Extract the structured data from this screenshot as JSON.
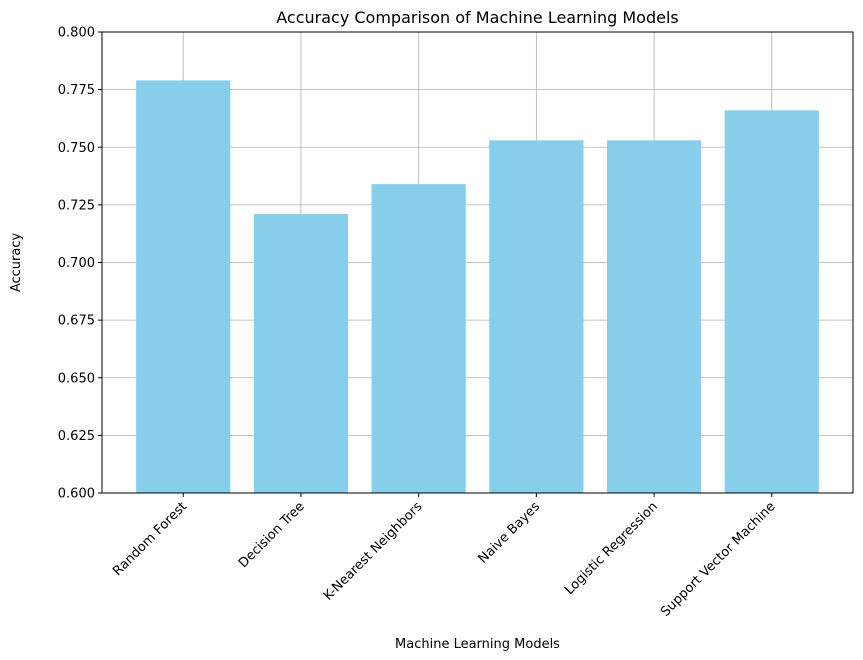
{
  "chart_data": {
    "type": "bar",
    "title": "Accuracy Comparison of Machine Learning Models",
    "xlabel": "Machine Learning Models",
    "ylabel": "Accuracy",
    "categories": [
      "Random Forest",
      "Decision Tree",
      "K-Nearest Neighbors",
      "Naive Bayes",
      "Logistic Regression",
      "Support Vector Machine"
    ],
    "values": [
      0.779,
      0.721,
      0.734,
      0.753,
      0.753,
      0.766
    ],
    "ylim": [
      0.6,
      0.8
    ],
    "yticks": [
      0.6,
      0.625,
      0.65,
      0.675,
      0.7,
      0.725,
      0.75,
      0.775,
      0.8
    ],
    "ytick_labels": [
      "0.600",
      "0.625",
      "0.650",
      "0.675",
      "0.700",
      "0.725",
      "0.750",
      "0.775",
      "0.800"
    ],
    "grid": true,
    "bar_color": "#87ceeb",
    "grid_color": "#b0b0b0"
  }
}
